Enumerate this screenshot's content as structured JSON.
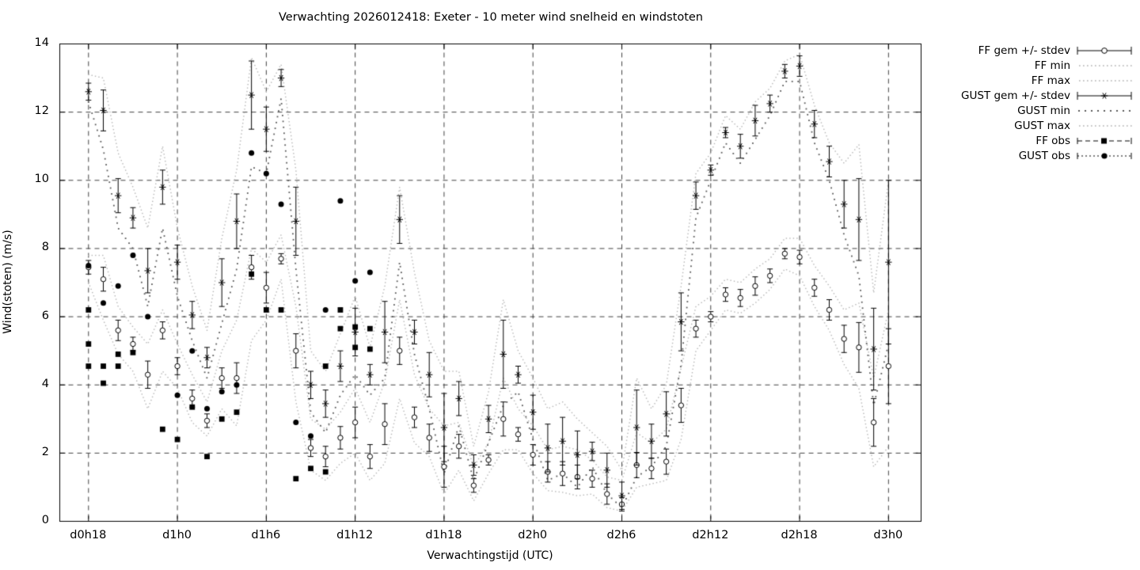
{
  "chart_data": {
    "type": "scatter",
    "title": "Verwachting 2026012418: Exeter - 10 meter wind snelheid en windstoten",
    "xlabel": "Verwachtingstijd (UTC)",
    "ylabel": "Wind(stoten) (m/s)",
    "x_tick_labels": [
      "d0h18",
      "d1h0",
      "d1h6",
      "d1h12",
      "d1h18",
      "d2h0",
      "d2h6",
      "d2h12",
      "d2h18",
      "d3h0"
    ],
    "x_tick_hours": [
      0,
      6,
      12,
      18,
      24,
      30,
      36,
      42,
      48,
      54
    ],
    "xlim_hours": [
      -1.94,
      56.2
    ],
    "y_ticks": [
      0,
      2,
      4,
      6,
      8,
      10,
      12,
      14
    ],
    "ylim": [
      0,
      14
    ],
    "grid": true,
    "legend_position": "outside-right",
    "hours": [
      0,
      1,
      2,
      3,
      4,
      5,
      6,
      7,
      8,
      9,
      10,
      11,
      12,
      13,
      14,
      15,
      16,
      17,
      18,
      19,
      20,
      21,
      22,
      23,
      24,
      25,
      26,
      27,
      28,
      29,
      30,
      31,
      32,
      33,
      34,
      35,
      36,
      37,
      38,
      39,
      40,
      41,
      42,
      43,
      44,
      45,
      46,
      47,
      48,
      49,
      50,
      51,
      52,
      53,
      54
    ],
    "series": {
      "ff_gem": [
        7.45,
        7.1,
        5.6,
        5.2,
        4.3,
        5.6,
        4.55,
        3.6,
        2.95,
        4.2,
        4.2,
        7.45,
        6.85,
        7.7,
        5.0,
        2.15,
        1.9,
        2.45,
        2.9,
        1.9,
        2.85,
        5.0,
        3.05,
        2.45,
        1.6,
        2.2,
        1.05,
        1.8,
        3.0,
        2.55,
        1.95,
        1.45,
        1.4,
        1.3,
        1.25,
        0.8,
        0.5,
        1.65,
        1.55,
        1.75,
        3.4,
        5.65,
        6.0,
        6.65,
        6.55,
        6.9,
        7.2,
        7.85,
        7.75,
        6.85,
        6.2,
        5.35,
        5.1,
        2.9,
        4.55
      ],
      "ff_sd": [
        0.2,
        0.35,
        0.3,
        0.2,
        0.4,
        0.25,
        0.25,
        0.25,
        0.2,
        0.3,
        0.45,
        0.35,
        0.45,
        0.15,
        0.5,
        0.25,
        0.3,
        0.33,
        0.45,
        0.35,
        0.6,
        0.4,
        0.3,
        0.4,
        0.6,
        0.35,
        0.2,
        0.15,
        0.5,
        0.2,
        0.3,
        0.3,
        0.35,
        0.35,
        0.25,
        0.3,
        0.2,
        0.37,
        0.3,
        0.37,
        0.5,
        0.25,
        0.15,
        0.2,
        0.25,
        0.27,
        0.2,
        0.15,
        0.2,
        0.25,
        0.3,
        0.4,
        0.73,
        0.7,
        1.1
      ],
      "gust_gem": [
        12.6,
        12.05,
        9.55,
        8.9,
        7.35,
        9.8,
        7.6,
        6.05,
        4.8,
        7.0,
        8.8,
        12.5,
        11.5,
        13.0,
        8.8,
        4.0,
        3.45,
        4.55,
        5.55,
        4.3,
        5.55,
        8.85,
        5.55,
        4.3,
        2.75,
        3.6,
        1.65,
        3.0,
        4.9,
        4.3,
        3.2,
        2.15,
        2.35,
        1.95,
        2.05,
        1.5,
        0.75,
        2.75,
        2.35,
        3.15,
        5.85,
        9.55,
        10.3,
        11.4,
        11.0,
        11.75,
        12.25,
        13.2,
        13.35,
        11.65,
        10.55,
        9.3,
        8.85,
        5.05,
        7.6
      ],
      "gust_sd": [
        0.25,
        0.6,
        0.5,
        0.3,
        0.65,
        0.5,
        0.5,
        0.4,
        0.3,
        0.7,
        0.8,
        1.0,
        0.65,
        0.25,
        1.0,
        0.4,
        0.4,
        0.45,
        0.7,
        0.3,
        0.9,
        0.7,
        0.35,
        0.65,
        1.0,
        0.5,
        0.3,
        0.4,
        1.0,
        0.25,
        0.5,
        0.7,
        0.7,
        0.7,
        0.27,
        0.5,
        0.4,
        1.1,
        0.5,
        0.65,
        0.85,
        0.4,
        0.15,
        0.15,
        0.35,
        0.45,
        0.25,
        0.2,
        0.3,
        0.4,
        0.45,
        0.7,
        1.2,
        1.2,
        2.4
      ],
      "ff_min": [
        7.0,
        5.9,
        4.9,
        4.4,
        3.3,
        4.4,
        3.9,
        2.9,
        2.5,
        3.3,
        2.8,
        5.3,
        5.9,
        7.1,
        3.5,
        1.5,
        1.2,
        1.7,
        2.0,
        1.2,
        1.7,
        3.6,
        2.3,
        1.9,
        0.8,
        1.5,
        0.6,
        1.4,
        2.1,
        2.1,
        1.4,
        0.9,
        0.85,
        0.75,
        0.8,
        0.4,
        0.3,
        1.0,
        1.1,
        1.2,
        2.4,
        5.0,
        5.6,
        6.2,
        6.1,
        6.4,
        6.8,
        7.4,
        7.2,
        6.3,
        5.6,
        4.6,
        3.9,
        1.6,
        2.2
      ],
      "ff_max": [
        7.8,
        7.8,
        6.3,
        5.7,
        5.2,
        6.2,
        5.2,
        4.3,
        3.5,
        5.0,
        5.9,
        8.0,
        7.6,
        8.4,
        6.3,
        3.0,
        2.7,
        3.2,
        3.9,
        2.9,
        4.1,
        6.5,
        4.3,
        3.3,
        2.8,
        2.9,
        1.6,
        2.3,
        4.2,
        3.3,
        2.8,
        2.1,
        2.2,
        2.1,
        1.8,
        1.3,
        1.2,
        2.6,
        2.3,
        2.7,
        4.5,
        6.3,
        6.6,
        7.1,
        7.0,
        7.4,
        7.7,
        8.3,
        8.3,
        7.5,
        6.9,
        6.2,
        6.4,
        4.2,
        6.2
      ],
      "gust_min": [
        12.3,
        10.9,
        8.6,
        8.0,
        6.3,
        8.6,
        6.6,
        5.3,
        4.2,
        5.8,
        7.4,
        10.4,
        10.2,
        12.4,
        7.4,
        3.2,
        2.6,
        3.7,
        4.3,
        3.7,
        4.2,
        7.6,
        4.9,
        3.3,
        1.4,
        2.8,
        1.2,
        2.3,
        3.4,
        3.8,
        2.4,
        1.2,
        1.4,
        1.0,
        1.6,
        0.8,
        0.4,
        1.3,
        1.6,
        2.2,
        4.6,
        8.9,
        10.0,
        11.1,
        10.5,
        11.2,
        11.9,
        12.9,
        12.9,
        11.1,
        10.0,
        8.4,
        7.2,
        3.4,
        5.2
      ],
      "gust_max": [
        13.1,
        13.0,
        10.8,
        9.8,
        8.6,
        11.0,
        8.6,
        6.9,
        5.6,
        8.3,
        10.3,
        13.6,
        12.6,
        13.4,
        10.3,
        5.0,
        4.4,
        5.5,
        6.6,
        5.1,
        6.9,
        9.8,
        7.3,
        5.3,
        4.4,
        4.4,
        2.2,
        3.8,
        6.5,
        5.0,
        4.2,
        3.3,
        3.5,
        3.0,
        2.6,
        2.2,
        1.5,
        4.2,
        3.3,
        4.0,
        6.9,
        10.2,
        10.8,
        11.9,
        11.5,
        12.3,
        12.7,
        13.5,
        13.7,
        12.2,
        11.1,
        10.5,
        11.05,
        6.7,
        10.0
      ],
      "ff_obs": [
        [
          0,
          6.2
        ],
        [
          0,
          5.2
        ],
        [
          0,
          4.55
        ],
        [
          1,
          4.55
        ],
        [
          1,
          4.05
        ],
        [
          2,
          4.9
        ],
        [
          2,
          4.55
        ],
        [
          3,
          4.95
        ],
        [
          5,
          2.7
        ],
        [
          6,
          2.4
        ],
        [
          7,
          3.35
        ],
        [
          8,
          1.9
        ],
        [
          9,
          3.0
        ],
        [
          10,
          3.2
        ],
        [
          11,
          7.25
        ],
        [
          12,
          6.2
        ],
        [
          13,
          6.2
        ],
        [
          14,
          1.25
        ],
        [
          15,
          1.55
        ],
        [
          16,
          1.45
        ],
        [
          16,
          4.55
        ],
        [
          17,
          6.2
        ],
        [
          17,
          5.65
        ],
        [
          18,
          5.7
        ],
        [
          18,
          5.1
        ],
        [
          19,
          5.65
        ],
        [
          19,
          5.05
        ]
      ],
      "gust_obs": [
        [
          0,
          7.5
        ],
        [
          1,
          6.4
        ],
        [
          2,
          6.9
        ],
        [
          3,
          7.8
        ],
        [
          4,
          6.0
        ],
        [
          6,
          3.7
        ],
        [
          7,
          5.0
        ],
        [
          8,
          3.3
        ],
        [
          9,
          3.8
        ],
        [
          10,
          4.0
        ],
        [
          11,
          10.8
        ],
        [
          12,
          10.2
        ],
        [
          13,
          9.3
        ],
        [
          14,
          2.9
        ],
        [
          15,
          2.5
        ],
        [
          16,
          6.2
        ],
        [
          17,
          9.4
        ],
        [
          18,
          7.05
        ],
        [
          19,
          7.3
        ]
      ]
    },
    "legend": [
      {
        "label": "FF gem +/- stdev",
        "style": "errorbar-circle"
      },
      {
        "label": "FF min",
        "style": "dotted-light"
      },
      {
        "label": "FF max",
        "style": "dotted-light"
      },
      {
        "label": "GUST gem +/- stdev",
        "style": "errorbar-star"
      },
      {
        "label": "GUST min",
        "style": "dotted-dark"
      },
      {
        "label": "GUST max",
        "style": "dotted-light"
      },
      {
        "label": "FF obs",
        "style": "dash-square"
      },
      {
        "label": "GUST obs",
        "style": "dotted-circle"
      }
    ],
    "colors": {
      "foreground": "#000000",
      "grid": "#2a2a2a",
      "envelope_light": "#b3b3b3",
      "envelope_dark": "#5a5a5a"
    }
  }
}
